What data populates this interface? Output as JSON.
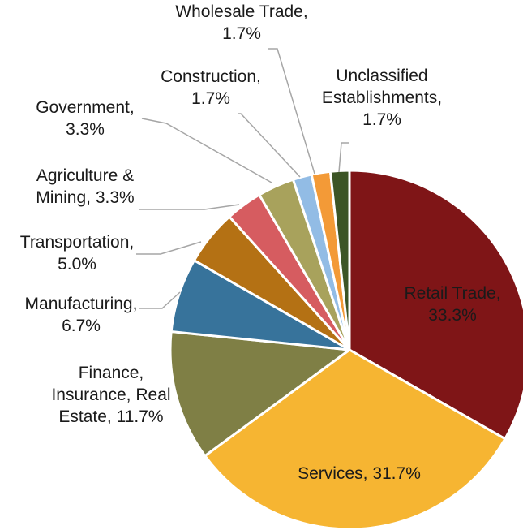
{
  "chart_data": {
    "type": "pie",
    "title": "",
    "slices": [
      {
        "name": "Retail Trade",
        "value": 33.3,
        "label_lines": [
          "Retail Trade,",
          "33.3%"
        ],
        "color": "#7f1517",
        "label_color": "#ffffff"
      },
      {
        "name": "Services",
        "value": 31.7,
        "label_lines": [
          "Services, 31.7%"
        ],
        "color": "#f6b532",
        "label_color": "#1a1a1a"
      },
      {
        "name": "Finance, Insurance, Real Estate",
        "value": 11.7,
        "label_lines": [
          "Finance,",
          "Insurance, Real",
          "Estate, 11.7%"
        ],
        "color": "#7f7f45",
        "label_color": "#1a1a1a"
      },
      {
        "name": "Manufacturing",
        "value": 6.7,
        "label_lines": [
          "Manufacturing,",
          "6.7%"
        ],
        "color": "#37739b",
        "label_color": "#1a1a1a"
      },
      {
        "name": "Transportation",
        "value": 5.0,
        "label_lines": [
          "Transportation,",
          "5.0%"
        ],
        "color": "#b47114",
        "label_color": "#1a1a1a"
      },
      {
        "name": "Agriculture & Mining",
        "value": 3.3,
        "label_lines": [
          "Agriculture &",
          "Mining, 3.3%"
        ],
        "color": "#d65c60",
        "label_color": "#1a1a1a"
      },
      {
        "name": "Government",
        "value": 3.3,
        "label_lines": [
          "Government,",
          "3.3%"
        ],
        "color": "#a8a25c",
        "label_color": "#1a1a1a"
      },
      {
        "name": "Construction",
        "value": 1.7,
        "label_lines": [
          "Construction,",
          "1.7%"
        ],
        "color": "#92bce5",
        "label_color": "#1a1a1a"
      },
      {
        "name": "Wholesale Trade",
        "value": 1.7,
        "label_lines": [
          "Wholesale Trade,",
          "1.7%"
        ],
        "color": "#f39a37",
        "label_color": "#1a1a1a"
      },
      {
        "name": "Unclassified Establishments",
        "value": 1.7,
        "label_lines": [
          "Unclassified",
          "Establishments,",
          "1.7%"
        ],
        "color": "#3c5526",
        "label_color": "#1a1a1a"
      }
    ]
  }
}
